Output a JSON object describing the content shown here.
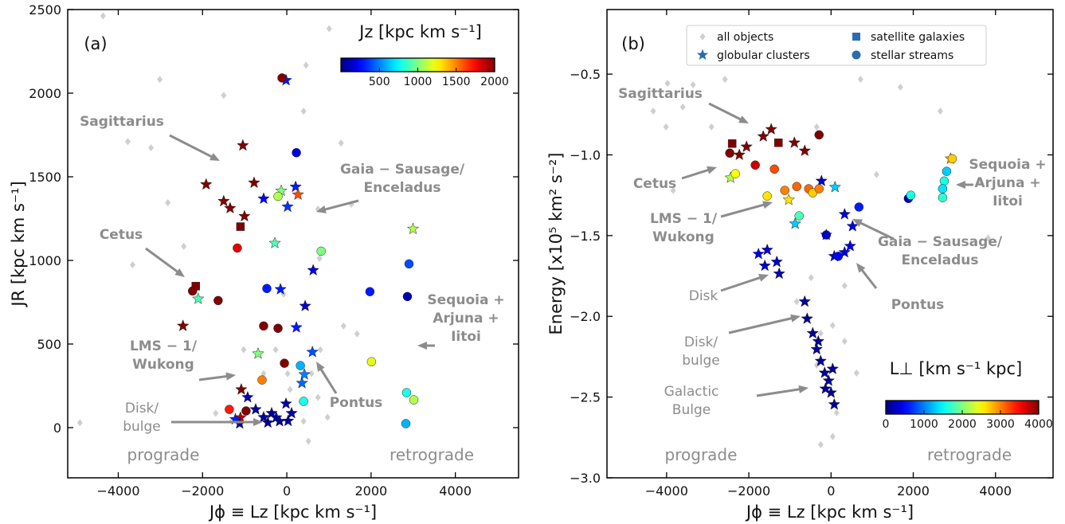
{
  "chart_data": [
    {
      "type": "scatter",
      "panel_label": "(a)",
      "xlabel": "Jϕ ≡ Lz [kpc km s⁻¹]",
      "ylabel": "JR [kpc km s⁻¹]",
      "xlim": [
        -5200,
        5500
      ],
      "ylim": [
        -300,
        2500
      ],
      "xticks": [
        {
          "value": -4000,
          "label": "−4000"
        },
        {
          "value": -2000,
          "label": "−2000"
        },
        0,
        2000,
        4000
      ],
      "yticks": [
        0,
        500,
        1000,
        1500,
        2000,
        2500
      ],
      "colorbar": {
        "label": "Jz [kpc km s⁻¹]",
        "clim": [
          0,
          2000
        ],
        "ticks": [
          500,
          1000,
          1500,
          2000
        ],
        "colormap": "jet"
      },
      "series": [
        {
          "marker": "diamond",
          "color": "#cfcfcf",
          "x": [
            -4910,
            -4360,
            -3773,
            -3223,
            -3659,
            -2825,
            455,
            1005,
            398,
            1289,
            1535,
            739,
            1346,
            1668,
            796,
            588,
            19,
            -265,
            -550,
            -1308,
            -1687,
            739,
            967,
            398,
            -76,
            777,
            -2446,
            -1024,
            76,
            512,
            -3014,
            -1498
          ],
          "y": [
            29,
            2462,
            1711,
            1673,
            974,
            1345,
            2167,
            2386,
            1892,
            1702,
            1336,
            1307,
            608,
            561,
            466,
            323,
            323,
            466,
            323,
            38,
            86,
            181,
            62,
            38,
            798,
            1012,
            1084,
            466,
            228,
            -81,
            2082,
            1987
          ]
        },
        {
          "marker": "star",
          "color": "#2b6cb0",
          "x": [
            -1915,
            -1043,
            -777,
            -1498,
            -1005,
            -1346,
            -19,
            -550,
            -284,
            626,
            19,
            209,
            265,
            -133,
            -2464,
            -2104,
            -682,
            -1081,
            -1100,
            436,
            227,
            607,
            417,
            360,
            -1118,
            -739,
            -360,
            -171,
            114,
            -550,
            -19,
            -929,
            -1220,
            -450,
            -250,
            30,
            -150,
            2995
          ],
          "y": [
            1454,
            1687,
            1464,
            1354,
            1264,
            1312,
            2077,
            1369,
            1103,
            941,
            1321,
            1440,
            1393,
            1416,
            608,
            770,
            442,
            228,
            60,
            727,
            599,
            452,
            318,
            266,
            24,
            109,
            86,
            38,
            86,
            62,
            143,
            181,
            50,
            30,
            60,
            40,
            827,
            1188
          ],
          "c": [
            2000,
            2000,
            2000,
            2000,
            2000,
            2000,
            300,
            250,
            900,
            200,
            350,
            300,
            1600,
            1000,
            2000,
            900,
            1000,
            2000,
            1900,
            150,
            300,
            400,
            500,
            450,
            80,
            60,
            60,
            50,
            70,
            60,
            80,
            90,
            300,
            50,
            60,
            70,
            300,
            1100
          ]
        },
        {
          "marker": "square",
          "color": "#2b6cb0",
          "x": [
            -1100,
            -2161
          ],
          "y": [
            1202,
            846
          ],
          "c": [
            2000,
            2000
          ]
        },
        {
          "marker": "circle",
          "color": "#2b6cb0",
          "x": [
            -114,
            227,
            -208,
            815,
            -1175,
            -2237,
            -1630,
            -474,
            -550,
            -209,
            -57,
            -588,
            -1365,
            -967,
            1972,
            2900,
            2862,
            2010,
            2843,
            3014,
            2825,
            322,
            398
          ],
          "y": [
            2091,
            1644,
            1383,
            1055,
            1074,
            817,
            760,
            832,
            608,
            594,
            385,
            285,
            109,
            100,
            813,
            979,
            784,
            394,
            209,
            166,
            24,
            371,
            157
          ],
          "c": [
            2000,
            200,
            1100,
            1000,
            1800,
            2000,
            2000,
            300,
            2000,
            2000,
            2000,
            1500,
            1700,
            2000,
            300,
            400,
            100,
            1200,
            800,
            1100,
            600,
            600,
            800
          ]
        }
      ],
      "annotations": [
        {
          "lines": [
            "Sagittarius"
          ]
        },
        {
          "lines": [
            "Gaia − Sausage/",
            "Enceladus"
          ]
        },
        {
          "lines": [
            "Cetus"
          ]
        },
        {
          "lines": [
            "Sequoia +",
            "Arjuna +",
            "Iitoi"
          ]
        },
        {
          "lines": [
            "LMS − 1/",
            "Wukong"
          ]
        },
        {
          "lines": [
            "Pontus"
          ]
        },
        {
          "lines": [
            "Disk/",
            "bulge"
          ]
        }
      ],
      "region_labels": [
        "prograde",
        "retrograde"
      ]
    },
    {
      "type": "scatter",
      "panel_label": "(b)",
      "xlabel": "Jϕ ≡ Lz [kpc km s⁻¹]",
      "ylabel": "Energy [x10⁵ km² s⁻²]",
      "xlim": [
        -5450,
        5400
      ],
      "ylim": [
        -3.0,
        -0.1
      ],
      "xticks": [
        {
          "value": -4000,
          "label": "−4000"
        },
        {
          "value": -2000,
          "label": "−2000"
        },
        0,
        2000,
        4000
      ],
      "yticks": [
        {
          "value": -3.0,
          "label": "−3.0"
        },
        {
          "value": -2.5,
          "label": "−2.5"
        },
        {
          "value": -2.0,
          "label": "−2.0"
        },
        {
          "value": -1.5,
          "label": "−1.5"
        },
        {
          "value": -1.0,
          "label": "−1.0"
        },
        {
          "value": -0.5,
          "label": "−0.5"
        }
      ],
      "colorbar": {
        "label": "L⊥ [km s⁻¹ kpc]",
        "clim": [
          0,
          4000
        ],
        "ticks": [
          0,
          1000,
          2000,
          3000,
          4000
        ],
        "colormap": "jet"
      },
      "legend": "upper center",
      "series": [
        {
          "name": "all objects",
          "marker": "diamond",
          "color": "#cfcfcf",
          "x": [
            -3976,
            -4325,
            -4014,
            -3840,
            -3607,
            -2909,
            -3355,
            -2580,
            -2560,
            -834,
            718,
            1687,
            2657,
            3627,
            3821,
            -485,
            330,
            -834,
            39,
            -252,
            330,
            -349,
            621,
            39,
            -252,
            136,
            1106,
            -349
          ],
          "y": [
            -0.557,
            -0.729,
            -0.827,
            -1.22,
            -0.704,
            -0.827,
            -0.566,
            -0.532,
            -0.394,
            -0.237,
            -0.532,
            -0.581,
            -0.729,
            -1.171,
            -1.515,
            -1.761,
            -1.81,
            -1.909,
            -2.056,
            -2.105,
            -2.155,
            -2.302,
            -2.351,
            -2.745,
            -2.794,
            -2.597,
            -1.122,
            -0.827
          ]
        },
        {
          "name": "globular clusters",
          "marker": "star",
          "color": "#2b6cb0",
          "x": [
            -2230,
            -1649,
            -1455,
            -892,
            -640,
            -2056,
            2909,
            -2444,
            -233,
            97,
            -1028,
            -873,
            524,
            330,
            -116,
            330,
            465,
            78,
            -1610,
            -1261,
            -1765,
            -1552,
            -1319,
            -640,
            -582,
            -446,
            -349,
            -252,
            -155,
            -58,
            0,
            78,
            -136,
            39,
            -310
          ],
          "y": [
            -1.0,
            -0.886,
            -0.842,
            -0.925,
            -0.975,
            -0.95,
            -1.024,
            -1.142,
            -1.162,
            -1.2,
            -1.279,
            -1.427,
            -1.442,
            -1.368,
            -1.496,
            -1.604,
            -1.565,
            -1.628,
            -1.687,
            -1.736,
            -1.614,
            -1.589,
            -1.663,
            -1.909,
            -2.015,
            -2.105,
            -2.204,
            -2.277,
            -2.35,
            -2.399,
            -2.473,
            -2.546,
            -2.449,
            -2.326,
            -2.155
          ],
          "c": [
            4000,
            4000,
            4000,
            4000,
            4000,
            4000,
            2800,
            2200,
            300,
            1300,
            2600,
            1300,
            400,
            300,
            300,
            350,
            400,
            300,
            300,
            200,
            400,
            350,
            250,
            100,
            100,
            100,
            100,
            100,
            100,
            100,
            100,
            100,
            100,
            100,
            100
          ]
        },
        {
          "name": "satellite galaxies",
          "marker": "square",
          "color": "#2b6cb0",
          "x": [
            -1280,
            -2405
          ],
          "y": [
            -0.925,
            -0.93
          ],
          "c": [
            4000,
            4000
          ]
        },
        {
          "name": "stellar streams",
          "marker": "circle",
          "color": "#2b6cb0",
          "x": [
            -291,
            -2463,
            -1843,
            -1377,
            -2327,
            -1552,
            -1125,
            -834,
            -543,
            -446,
            -291,
            -776,
            -116,
            175,
            679,
            1881,
            1940,
            2812,
            2948,
            2754,
            2715,
            2715
          ],
          "y": [
            -0.876,
            -0.989,
            -1.063,
            -1.088,
            -1.117,
            -1.255,
            -1.22,
            -1.196,
            -1.21,
            -1.235,
            -1.21,
            -1.378,
            -1.496,
            -1.628,
            -1.323,
            -1.27,
            -1.25,
            -1.102,
            -1.024,
            -1.162,
            -1.265,
            -1.21
          ],
          "c": [
            4000,
            4000,
            3700,
            3200,
            2500,
            2600,
            3000,
            3100,
            3100,
            2700,
            3000,
            1800,
            300,
            500,
            600,
            200,
            1600,
            1300,
            2700,
            1600,
            1700,
            1400
          ]
        }
      ],
      "annotations": [
        {
          "lines": [
            "Sagittarius"
          ]
        },
        {
          "lines": [
            "Cetus"
          ]
        },
        {
          "lines": [
            "LMS − 1/",
            "Wukong"
          ]
        },
        {
          "lines": [
            "Gaia − Sausage/",
            "Enceladus"
          ]
        },
        {
          "lines": [
            "Disk"
          ]
        },
        {
          "lines": [
            "Pontus"
          ]
        },
        {
          "lines": [
            "Disk/",
            "bulge"
          ]
        },
        {
          "lines": [
            "Galactic",
            "Bulge"
          ]
        },
        {
          "lines": [
            "Sequoia +",
            "Arjuna +",
            "Iitoi"
          ]
        }
      ],
      "region_labels": [
        "prograde",
        "retrograde"
      ]
    }
  ]
}
